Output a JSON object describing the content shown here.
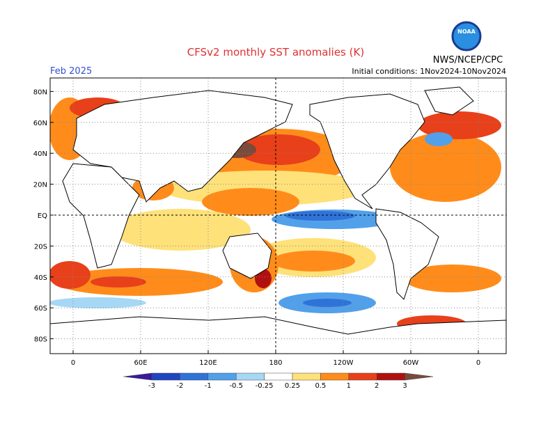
{
  "header": {
    "title": "CFSv2 monthly SST anomalies (K)",
    "valid_month": "Feb 2025",
    "initial_conditions": "Initial conditions: 1Nov2024-10Nov2024",
    "agency": "NWS/NCEP/CPC",
    "logo_text": "NOAA"
  },
  "map": {
    "lat_ticks": [
      {
        "value": 80,
        "label": "80N"
      },
      {
        "value": 60,
        "label": "60N"
      },
      {
        "value": 40,
        "label": "40N"
      },
      {
        "value": 20,
        "label": "20N"
      },
      {
        "value": 0,
        "label": "EQ"
      },
      {
        "value": -20,
        "label": "20S"
      },
      {
        "value": -40,
        "label": "40S"
      },
      {
        "value": -60,
        "label": "60S"
      },
      {
        "value": -80,
        "label": "80S"
      }
    ],
    "lon_ticks": [
      0,
      {
        "value": 60,
        "label": "60E"
      },
      {
        "value": 120,
        "label": "120E"
      },
      {
        "value": 180,
        "label": "180"
      },
      {
        "value": 240,
        "label": "120W"
      },
      {
        "value": 300,
        "label": "60W"
      },
      {
        "value": 360,
        "label": "0"
      }
    ]
  },
  "colorbar": {
    "ticks": [
      -3,
      -2,
      -1,
      -0.5,
      -0.25,
      0.25,
      0.5,
      1,
      2,
      3
    ],
    "colors": [
      "#3b1a9c",
      "#1f45c0",
      "#2f73d8",
      "#52a0ea",
      "#a6d8f6",
      "#ffffff",
      "#ffe17a",
      "#ff8c1a",
      "#e8401a",
      "#b01010",
      "#7a4a3a"
    ]
  }
}
